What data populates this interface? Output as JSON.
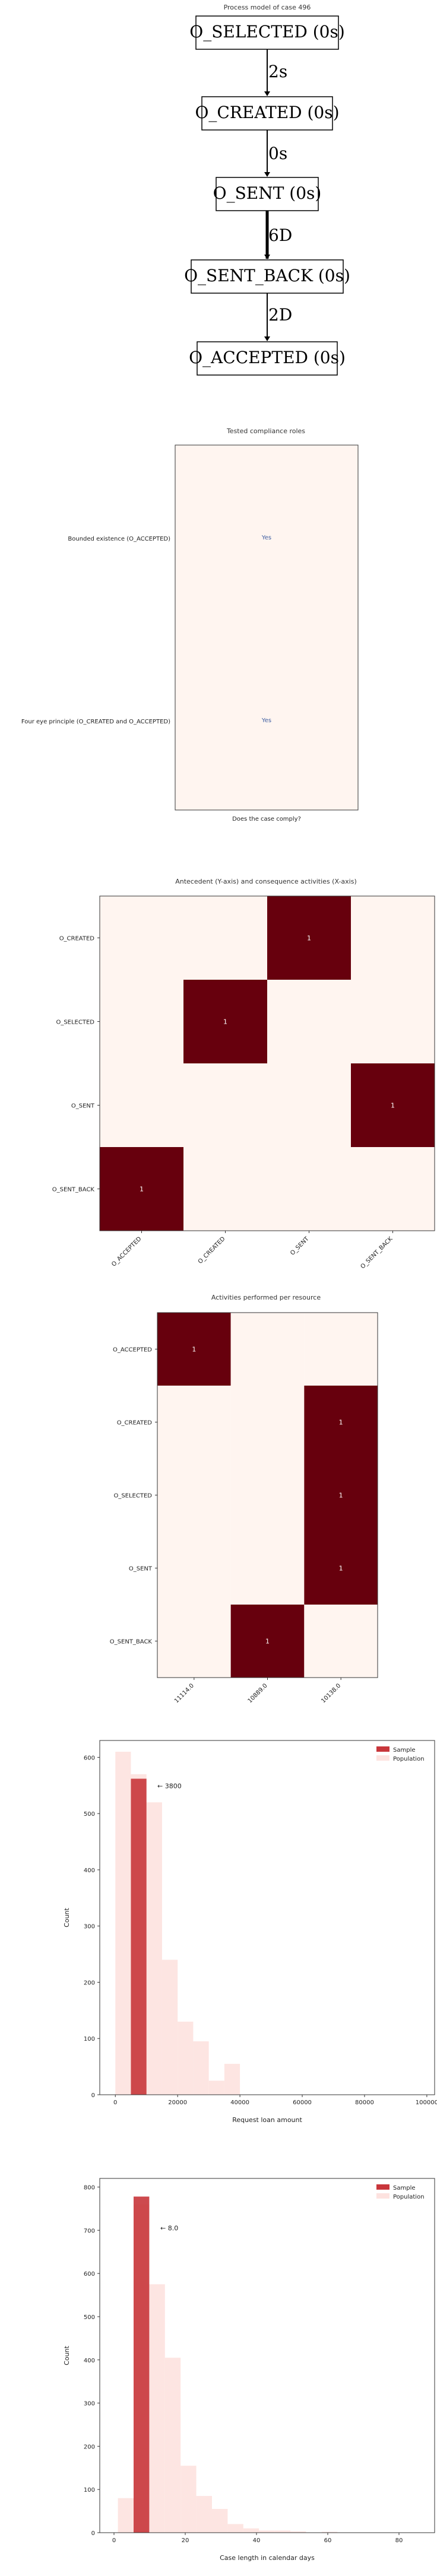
{
  "process_model": {
    "title": "Process model of case 496",
    "nodes": [
      "O_SELECTED (0s)",
      "O_CREATED (0s)",
      "O_SENT (0s)",
      "O_SENT_BACK (0s)",
      "O_ACCEPTED (0s)"
    ],
    "edges": [
      {
        "label": "2s",
        "bold": false
      },
      {
        "label": "0s",
        "bold": false
      },
      {
        "label": "6D",
        "bold": true
      },
      {
        "label": "2D",
        "bold": false
      }
    ]
  },
  "chart_data": [
    {
      "type": "table",
      "title": "Tested compliance roles",
      "xlabel": "Does the case comply?",
      "rows": [
        "Bounded existence (O_ACCEPTED)",
        "Four eye principle (O_CREATED and O_ACCEPTED)"
      ],
      "values": [
        "Yes",
        "Yes"
      ],
      "colors": {
        "cell": "#fff5f0",
        "text": "#3b5ba0"
      }
    },
    {
      "type": "heatmap",
      "title": "Antecedent (Y-axis) and consequence activities (X-axis)",
      "y_categories": [
        "O_CREATED",
        "O_SELECTED",
        "O_SENT",
        "O_SENT_BACK"
      ],
      "x_categories": [
        "O_ACCEPTED",
        "O_CREATED",
        "O_SENT",
        "O_SENT_BACK"
      ],
      "values": [
        [
          0,
          0,
          1,
          0
        ],
        [
          0,
          1,
          0,
          0
        ],
        [
          0,
          0,
          0,
          1
        ],
        [
          1,
          0,
          0,
          0
        ]
      ],
      "colors": {
        "low": "#fff5f0",
        "high": "#67000d"
      }
    },
    {
      "type": "heatmap",
      "title": "Activities performed per resource",
      "y_categories": [
        "O_ACCEPTED",
        "O_CREATED",
        "O_SELECTED",
        "O_SENT",
        "O_SENT_BACK"
      ],
      "x_categories": [
        "11114.0",
        "10889.0",
        "10138.0"
      ],
      "values": [
        [
          1,
          0,
          0
        ],
        [
          0,
          0,
          1
        ],
        [
          0,
          0,
          1
        ],
        [
          0,
          0,
          1
        ],
        [
          0,
          1,
          0
        ]
      ],
      "colors": {
        "low": "#fff5f0",
        "high": "#67000d"
      }
    },
    {
      "type": "bar",
      "xlabel": "Request loan amount",
      "ylabel": "Count",
      "xlim": [
        -5000,
        102500
      ],
      "ylim": [
        0,
        630
      ],
      "xticks": [
        0,
        20000,
        40000,
        60000,
        80000,
        100000
      ],
      "yticks": [
        0,
        100,
        200,
        300,
        400,
        500,
        600
      ],
      "bin_width": 5000,
      "annotation": "← 3800",
      "annotation_x": 13500,
      "annotation_y": 545,
      "legend": "top-right",
      "series": [
        {
          "name": "Sample",
          "color": "#c8363b",
          "bins": [
            {
              "x0": 5000,
              "value": 562
            }
          ]
        },
        {
          "name": "Population",
          "color": "#fde2df",
          "bins": [
            {
              "x0": 0,
              "value": 610
            },
            {
              "x0": 5000,
              "value": 570
            },
            {
              "x0": 10000,
              "value": 520
            },
            {
              "x0": 15000,
              "value": 240
            },
            {
              "x0": 20000,
              "value": 130
            },
            {
              "x0": 25000,
              "value": 95
            },
            {
              "x0": 30000,
              "value": 25
            },
            {
              "x0": 35000,
              "value": 55
            }
          ]
        }
      ]
    },
    {
      "type": "bar",
      "xlabel": "Case length in calendar days",
      "ylabel": "Count",
      "xlim": [
        -4,
        90
      ],
      "ylim": [
        0,
        820
      ],
      "xticks": [
        0,
        20,
        40,
        60,
        80
      ],
      "yticks": [
        0,
        100,
        200,
        300,
        400,
        500,
        600,
        700,
        800
      ],
      "bin_width": 4.4,
      "annotation": "← 8.0",
      "annotation_x": 13,
      "annotation_y": 700,
      "legend": "top-right",
      "series": [
        {
          "name": "Sample",
          "color": "#c8363b",
          "bins": [
            {
              "x0": 5.5,
              "value": 778
            }
          ]
        },
        {
          "name": "Population",
          "color": "#fde2df",
          "bins": [
            {
              "x0": 1.1,
              "value": 80
            },
            {
              "x0": 5.5,
              "value": 760
            },
            {
              "x0": 9.9,
              "value": 575
            },
            {
              "x0": 14.3,
              "value": 405
            },
            {
              "x0": 18.7,
              "value": 155
            },
            {
              "x0": 23.1,
              "value": 85
            },
            {
              "x0": 27.5,
              "value": 55
            },
            {
              "x0": 31.9,
              "value": 20
            },
            {
              "x0": 36.3,
              "value": 10
            },
            {
              "x0": 40.7,
              "value": 5
            },
            {
              "x0": 45.1,
              "value": 5
            },
            {
              "x0": 49.5,
              "value": 3
            },
            {
              "x0": 58.3,
              "value": 2
            }
          ]
        }
      ]
    }
  ]
}
